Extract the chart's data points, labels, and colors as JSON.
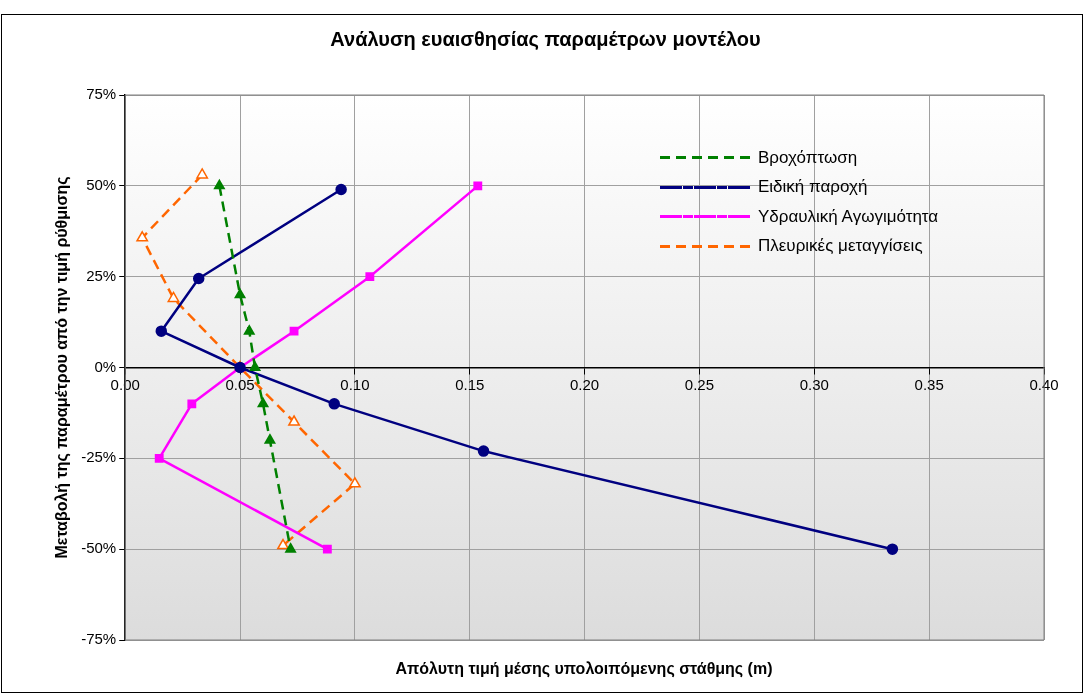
{
  "chart_data": {
    "type": "line",
    "title": "Ανάλυση ευαισθησίας παραμέτρων μοντέλου",
    "xlabel": "Απόλυτη τιμή μέσης υπολοιπόμενης στάθμης (m)",
    "ylabel": "Μεταβολή της παραμέτρου από την τιμή ρύθμισης",
    "series": [
      {
        "name": "Βροχόπτωση",
        "color": "#008000",
        "marker": "triangle",
        "line_style": "dashed",
        "x": [
          0.041,
          0.05,
          0.054,
          0.0565,
          0.06,
          0.063,
          0.072
        ],
        "values": [
          50,
          20,
          10,
          0,
          -10,
          -20,
          -50
        ]
      },
      {
        "name": "Ειδική παροχή",
        "color": "#000080",
        "marker": "circle",
        "line_style": "solid",
        "x": [
          0.094,
          0.032,
          0.0157,
          0.05,
          0.091,
          0.156,
          0.334
        ],
        "values": [
          49,
          24.5,
          10,
          0,
          -10,
          -23,
          -50
        ]
      },
      {
        "name": "Υδραυλική Αγωγιμότητα",
        "color": "#ff00ff",
        "marker": "square",
        "line_style": "solid",
        "x": [
          0.1535,
          0.1065,
          0.0735,
          0.05,
          0.029,
          0.0148,
          0.088
        ],
        "values": [
          50,
          25,
          10,
          0,
          -10,
          -25,
          -50
        ]
      },
      {
        "name": "Πλευρικές μεταγγίσεις",
        "color": "#ff6600",
        "marker": "triangle",
        "line_style": "dashed",
        "x": [
          0.0335,
          0.0074,
          0.021,
          0.05,
          0.0735,
          0.1,
          0.0687
        ],
        "values": [
          53,
          35.7,
          19,
          0,
          -15,
          -32,
          -49
        ]
      }
    ],
    "xlim": [
      0,
      0.4
    ],
    "xticks": [
      {
        "value": 0,
        "label": "0.00"
      },
      {
        "value": 0.05,
        "label": "0.05"
      },
      {
        "value": 0.1,
        "label": "0.10"
      },
      {
        "value": 0.15,
        "label": "0.15"
      },
      {
        "value": 0.2,
        "label": "0.20"
      },
      {
        "value": 0.25,
        "label": "0.25"
      },
      {
        "value": 0.3,
        "label": "0.30"
      },
      {
        "value": 0.35,
        "label": "0.35"
      },
      {
        "value": 0.4,
        "label": "0.40"
      }
    ],
    "ylim": [
      -75,
      75
    ],
    "yticks": [
      {
        "value": -75,
        "label": "-75%"
      },
      {
        "value": -50,
        "label": "-50%"
      },
      {
        "value": -25,
        "label": "-25%"
      },
      {
        "value": 0,
        "label": "0%"
      },
      {
        "value": 25,
        "label": "25%"
      },
      {
        "value": 50,
        "label": "50%"
      },
      {
        "value": 75,
        "label": "75%"
      }
    ],
    "grid": true,
    "legend": "top right"
  }
}
